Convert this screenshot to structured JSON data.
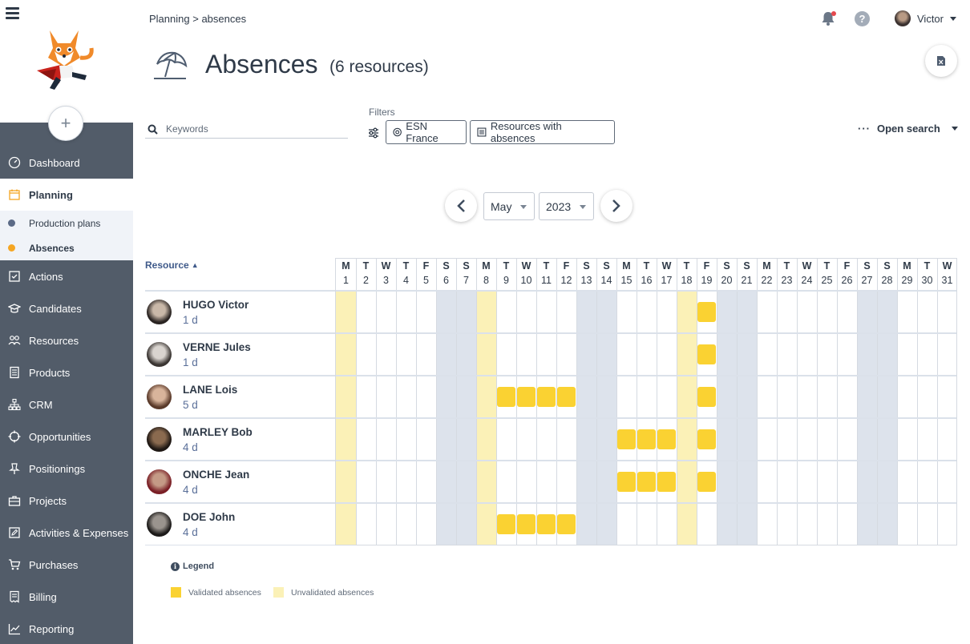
{
  "breadcrumb": {
    "parent": "Planning",
    "separator": ">",
    "current": "absences"
  },
  "header": {
    "user_name": "Victor"
  },
  "page": {
    "title": "Absences",
    "subtitle": "(6 resources)"
  },
  "sidebar": {
    "add_symbol": "+",
    "items": [
      {
        "label": "Dashboard",
        "icon": "gauge-icon"
      },
      {
        "label": "Planning",
        "icon": "calendar-icon",
        "active": true
      },
      {
        "label": "Actions",
        "icon": "checklist-icon"
      },
      {
        "label": "Candidates",
        "icon": "graduation-cap-icon"
      },
      {
        "label": "Resources",
        "icon": "users-icon"
      },
      {
        "label": "Products",
        "icon": "document-icon"
      },
      {
        "label": "CRM",
        "icon": "org-chart-icon"
      },
      {
        "label": "Opportunities",
        "icon": "crosshair-icon"
      },
      {
        "label": "Positionings",
        "icon": "pin-icon"
      },
      {
        "label": "Projects",
        "icon": "briefcase-icon"
      },
      {
        "label": "Activities & Expenses",
        "icon": "edit-icon"
      },
      {
        "label": "Purchases",
        "icon": "cart-icon"
      },
      {
        "label": "Billing",
        "icon": "invoice-icon"
      },
      {
        "label": "Reporting",
        "icon": "trend-icon"
      }
    ],
    "subitems": [
      {
        "label": "Production plans",
        "dot_color": "#5b6a86"
      },
      {
        "label": "Absences",
        "dot_color": "#f5a623",
        "active": true
      }
    ]
  },
  "search": {
    "placeholder": "Keywords"
  },
  "filters": {
    "label": "Filters",
    "chips": [
      "ESN France",
      "Resources with absences"
    ],
    "open_search": "Open search"
  },
  "period": {
    "month": "May",
    "year": "2023"
  },
  "grid": {
    "resource_header": "Resource",
    "days": [
      {
        "l": "M",
        "n": "1",
        "type": "holiday"
      },
      {
        "l": "T",
        "n": "2"
      },
      {
        "l": "W",
        "n": "3"
      },
      {
        "l": "T",
        "n": "4"
      },
      {
        "l": "F",
        "n": "5"
      },
      {
        "l": "S",
        "n": "6",
        "type": "weekend"
      },
      {
        "l": "S",
        "n": "7",
        "type": "weekend"
      },
      {
        "l": "M",
        "n": "8",
        "type": "holiday"
      },
      {
        "l": "T",
        "n": "9"
      },
      {
        "l": "W",
        "n": "10"
      },
      {
        "l": "T",
        "n": "11"
      },
      {
        "l": "F",
        "n": "12"
      },
      {
        "l": "S",
        "n": "13",
        "type": "weekend"
      },
      {
        "l": "S",
        "n": "14",
        "type": "weekend"
      },
      {
        "l": "M",
        "n": "15"
      },
      {
        "l": "T",
        "n": "16"
      },
      {
        "l": "W",
        "n": "17"
      },
      {
        "l": "T",
        "n": "18",
        "type": "holiday"
      },
      {
        "l": "F",
        "n": "19"
      },
      {
        "l": "S",
        "n": "20",
        "type": "weekend"
      },
      {
        "l": "S",
        "n": "21",
        "type": "weekend"
      },
      {
        "l": "M",
        "n": "22"
      },
      {
        "l": "T",
        "n": "23"
      },
      {
        "l": "W",
        "n": "24"
      },
      {
        "l": "T",
        "n": "25"
      },
      {
        "l": "F",
        "n": "26"
      },
      {
        "l": "S",
        "n": "27",
        "type": "weekend"
      },
      {
        "l": "S",
        "n": "28",
        "type": "weekend"
      },
      {
        "l": "M",
        "n": "29"
      },
      {
        "l": "T",
        "n": "30"
      },
      {
        "l": "W",
        "n": "31"
      }
    ],
    "resources": [
      {
        "name": "HUGO Victor",
        "days": "1 d",
        "absences": [
          19
        ],
        "avatar_colors": [
          "#c9b8a8",
          "#2a2422"
        ]
      },
      {
        "name": "VERNE Jules",
        "days": "1 d",
        "absences": [
          19
        ],
        "avatar_colors": [
          "#d9d4cf",
          "#3a3532"
        ]
      },
      {
        "name": "LANE Lois",
        "days": "5 d",
        "absences": [
          9,
          10,
          11,
          12,
          19
        ],
        "avatar_colors": [
          "#d8b49b",
          "#5a3a2a"
        ]
      },
      {
        "name": "MARLEY Bob",
        "days": "4 d",
        "absences": [
          15,
          16,
          17,
          19
        ],
        "avatar_colors": [
          "#8a6a4f",
          "#1f1814"
        ]
      },
      {
        "name": "ONCHE Jean",
        "days": "4 d",
        "absences": [
          15,
          16,
          17,
          19
        ],
        "avatar_colors": [
          "#c49a86",
          "#7a1f26"
        ]
      },
      {
        "name": "DOE John",
        "days": "4 d",
        "absences": [
          9,
          10,
          11,
          12
        ],
        "avatar_colors": [
          "#9a948e",
          "#1c1a19"
        ]
      }
    ]
  },
  "legend": {
    "title": "Legend",
    "validated": "Validated absences",
    "unvalidated": "Unvalidated absences",
    "validated_color": "#fad232",
    "unvalidated_color": "#fbf1b7"
  }
}
